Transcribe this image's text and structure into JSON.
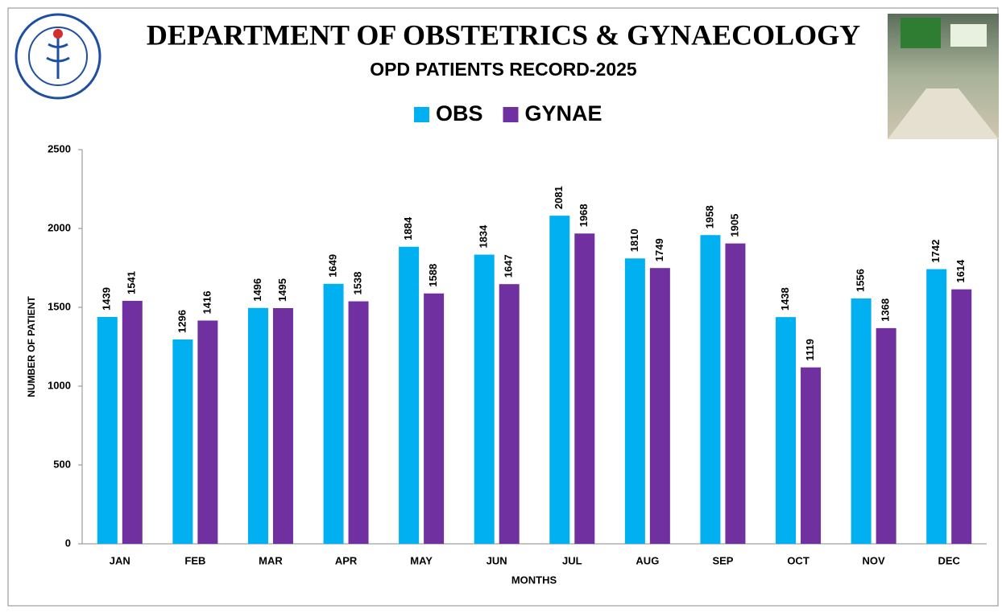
{
  "chart_data": {
    "type": "bar",
    "title": "DEPARTMENT OF OBSTETRICS & GYNAECOLOGY",
    "subtitle": "OPD PATIENTS RECORD-2025",
    "x_label": "MONTHS",
    "y_label": "NUMBER OF PATIENT",
    "categories": [
      "JAN",
      "FEB",
      "MAR",
      "APR",
      "MAY",
      "JUN",
      "JUL",
      "AUG",
      "SEP",
      "OCT",
      "NOV",
      "DEC"
    ],
    "series": [
      {
        "name": "OBS",
        "color": "#00b0f0",
        "values": [
          1439,
          1296,
          1496,
          1649,
          1884,
          1834,
          2081,
          1810,
          1958,
          1438,
          1556,
          1742
        ]
      },
      {
        "name": "GYNAE",
        "color": "#7030a0",
        "values": [
          1541,
          1416,
          1495,
          1538,
          1588,
          1647,
          1968,
          1749,
          1905,
          1119,
          1368,
          1614
        ]
      }
    ],
    "ylim": [
      0,
      2500
    ],
    "yticks": [
      0,
      500,
      1000,
      1500,
      2000,
      2500
    ],
    "grid": false,
    "legend": "top"
  }
}
